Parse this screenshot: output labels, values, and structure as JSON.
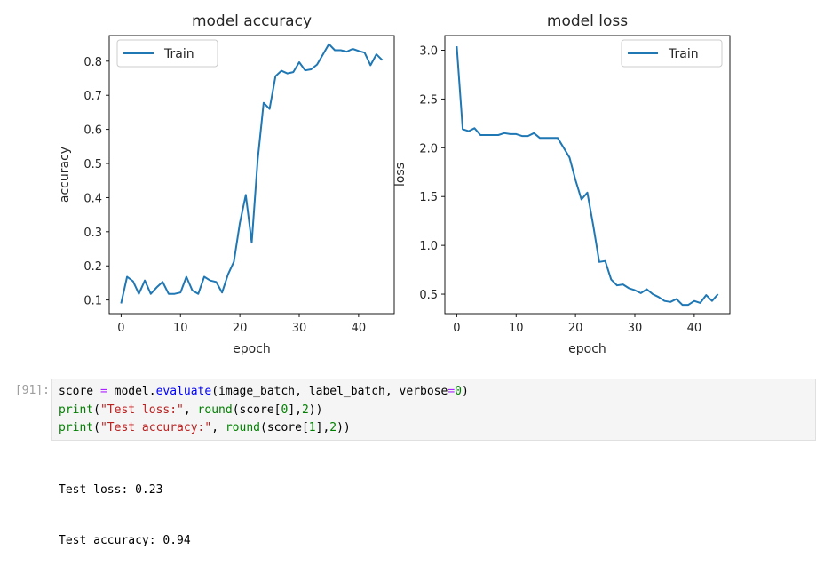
{
  "colors": {
    "series": "#1f77b4",
    "keyword": "#aa22ff",
    "number": "#008000",
    "builtin": "#008000",
    "string": "#ba2121",
    "method": "#0000ff",
    "prompt": "#9e9e9e"
  },
  "chart_data": [
    {
      "type": "line",
      "title": "model accuracy",
      "xlabel": "epoch",
      "ylabel": "accuracy",
      "xlim": [
        -2,
        46
      ],
      "ylim": [
        0.06,
        0.875
      ],
      "xticks": [
        0,
        10,
        20,
        30,
        40
      ],
      "yticks": [
        0.1,
        0.2,
        0.3,
        0.4,
        0.5,
        0.6,
        0.7,
        0.8
      ],
      "ytick_labels": [
        "0.1",
        "0.2",
        "0.3",
        "0.4",
        "0.5",
        "0.6",
        "0.7",
        "0.8"
      ],
      "legend_position": "top-left",
      "series": [
        {
          "name": "Train",
          "x": [
            0,
            1,
            2,
            3,
            4,
            5,
            6,
            7,
            8,
            9,
            10,
            11,
            12,
            13,
            14,
            15,
            16,
            17,
            18,
            19,
            20,
            21,
            22,
            23,
            24,
            25,
            26,
            27,
            28,
            29,
            30,
            31,
            32,
            33,
            34,
            35,
            36,
            37,
            38,
            39,
            40,
            41,
            42,
            43,
            44
          ],
          "values": [
            0.09,
            0.168,
            0.155,
            0.118,
            0.157,
            0.118,
            0.137,
            0.153,
            0.118,
            0.118,
            0.122,
            0.168,
            0.128,
            0.118,
            0.168,
            0.157,
            0.153,
            0.122,
            0.175,
            0.212,
            0.325,
            0.408,
            0.268,
            0.51,
            0.678,
            0.66,
            0.756,
            0.772,
            0.764,
            0.768,
            0.797,
            0.773,
            0.776,
            0.79,
            0.82,
            0.85,
            0.832,
            0.832,
            0.828,
            0.836,
            0.83,
            0.825,
            0.788,
            0.82,
            0.803
          ]
        }
      ]
    },
    {
      "type": "line",
      "title": "model loss",
      "xlabel": "epoch",
      "ylabel": "loss",
      "xlim": [
        -2,
        46
      ],
      "ylim": [
        0.3,
        3.15
      ],
      "xticks": [
        0,
        10,
        20,
        30,
        40
      ],
      "yticks": [
        0.5,
        1.0,
        1.5,
        2.0,
        2.5,
        3.0
      ],
      "ytick_labels": [
        "0.5",
        "1.0",
        "1.5",
        "2.0",
        "2.5",
        "3.0"
      ],
      "legend_position": "top-right",
      "series": [
        {
          "name": "Train",
          "x": [
            0,
            1,
            2,
            3,
            4,
            5,
            6,
            7,
            8,
            9,
            10,
            11,
            12,
            13,
            14,
            15,
            16,
            17,
            18,
            19,
            20,
            21,
            22,
            23,
            24,
            25,
            26,
            27,
            28,
            29,
            30,
            31,
            32,
            33,
            34,
            35,
            36,
            37,
            38,
            39,
            40,
            41,
            42,
            43,
            44
          ],
          "values": [
            3.04,
            2.19,
            2.17,
            2.2,
            2.13,
            2.13,
            2.13,
            2.13,
            2.15,
            2.14,
            2.14,
            2.12,
            2.12,
            2.15,
            2.1,
            2.1,
            2.1,
            2.1,
            2.0,
            1.9,
            1.67,
            1.47,
            1.54,
            1.2,
            0.83,
            0.84,
            0.65,
            0.59,
            0.6,
            0.56,
            0.54,
            0.51,
            0.55,
            0.5,
            0.47,
            0.43,
            0.42,
            0.45,
            0.39,
            0.39,
            0.43,
            0.41,
            0.49,
            0.43,
            0.5
          ]
        }
      ]
    }
  ],
  "cell": {
    "prompt": "[91]:",
    "lines": [
      [
        {
          "t": "score ",
          "c": "plain"
        },
        {
          "t": "=",
          "c": "keyword"
        },
        {
          "t": " model",
          "c": "plain"
        },
        {
          "t": ".",
          "c": "plain"
        },
        {
          "t": "evaluate",
          "c": "method"
        },
        {
          "t": "(image_batch, label_batch, verbose",
          "c": "plain"
        },
        {
          "t": "=",
          "c": "keyword"
        },
        {
          "t": "0",
          "c": "number"
        },
        {
          "t": ")",
          "c": "plain"
        }
      ],
      [
        {
          "t": "print",
          "c": "builtin"
        },
        {
          "t": "(",
          "c": "plain"
        },
        {
          "t": "\"Test loss:\"",
          "c": "string"
        },
        {
          "t": ", ",
          "c": "plain"
        },
        {
          "t": "round",
          "c": "builtin"
        },
        {
          "t": "(score[",
          "c": "plain"
        },
        {
          "t": "0",
          "c": "number"
        },
        {
          "t": "],",
          "c": "plain"
        },
        {
          "t": "2",
          "c": "number"
        },
        {
          "t": "))",
          "c": "plain"
        }
      ],
      [
        {
          "t": "print",
          "c": "builtin"
        },
        {
          "t": "(",
          "c": "plain"
        },
        {
          "t": "\"Test accuracy:\"",
          "c": "string"
        },
        {
          "t": ", ",
          "c": "plain"
        },
        {
          "t": "round",
          "c": "builtin"
        },
        {
          "t": "(score[",
          "c": "plain"
        },
        {
          "t": "1",
          "c": "number"
        },
        {
          "t": "],",
          "c": "plain"
        },
        {
          "t": "2",
          "c": "number"
        },
        {
          "t": "))",
          "c": "plain"
        }
      ]
    ]
  },
  "output": {
    "lines": [
      "Test loss: 0.23",
      "Test accuracy: 0.94"
    ]
  }
}
